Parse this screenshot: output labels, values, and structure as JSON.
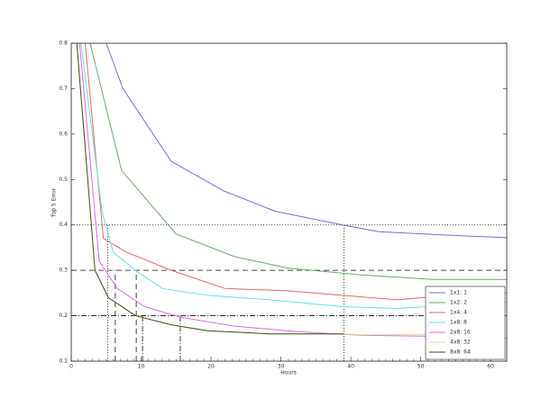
{
  "chart_data": {
    "type": "line",
    "xlabel": "Hours",
    "ylabel": "Top 5 Error",
    "xlim": [
      0,
      62.3
    ],
    "ylim": [
      0.1,
      0.8
    ],
    "xticks": [
      0,
      10,
      20,
      30,
      40,
      50,
      60
    ],
    "yticks": [
      0.1,
      0.2,
      0.3,
      0.4,
      0.5,
      0.6,
      0.7,
      0.8
    ],
    "legend": "lower right",
    "series": [
      {
        "name": "1x1: 1",
        "color": "#7070e0",
        "x": [
          5,
          7.4,
          14.3,
          21.8,
          29.2,
          38.8,
          44,
          53,
          62.3
        ],
        "values": [
          0.8,
          0.7,
          0.54,
          0.475,
          0.43,
          0.4,
          0.385,
          0.378,
          0.372
        ]
      },
      {
        "name": "1x2: 2",
        "color": "#6aaa6a",
        "x": [
          2.7,
          7.2,
          15,
          23.4,
          31,
          41.4,
          51.7,
          62.3
        ],
        "values": [
          0.8,
          0.52,
          0.38,
          0.33,
          0.305,
          0.29,
          0.28,
          0.28
        ]
      },
      {
        "name": "1x4: 4",
        "color": "#e06a6a",
        "x": [
          2,
          4.6,
          7.9,
          14.3,
          22,
          31,
          38.8,
          46.6,
          54,
          62.3
        ],
        "values": [
          0.8,
          0.37,
          0.34,
          0.3,
          0.26,
          0.255,
          0.245,
          0.235,
          0.245,
          0.25
        ]
      },
      {
        "name": "1x8: 8",
        "color": "#6adede",
        "x": [
          1.4,
          4.4,
          6,
          9.2,
          13,
          19.5,
          28.5,
          38.8,
          46.6,
          56.9,
          62.3
        ],
        "values": [
          0.8,
          0.43,
          0.34,
          0.3,
          0.26,
          0.245,
          0.235,
          0.22,
          0.216,
          0.225,
          0.23
        ]
      },
      {
        "name": "2x8: 16",
        "color": "#de6ade",
        "x": [
          1.2,
          4,
          6.6,
          10.5,
          15.6,
          23.4,
          32.4,
          41.4,
          50.5,
          62.3
        ],
        "values": [
          0.8,
          0.32,
          0.26,
          0.22,
          0.197,
          0.177,
          0.165,
          0.157,
          0.155,
          0.151
        ]
      },
      {
        "name": "4x8: 32",
        "color": "#e0e090",
        "x": [
          0.8,
          3.4,
          5.3,
          9.2,
          14.3,
          19.5,
          28.5,
          38.8,
          41.4,
          62.3
        ],
        "values": [
          0.8,
          0.3,
          0.24,
          0.2,
          0.18,
          0.167,
          0.16,
          0.16,
          0.158,
          0.16
        ]
      },
      {
        "name": "8x8: 64",
        "color": "#4a4a22",
        "x": [
          0.8,
          3.4,
          5.3,
          9.2,
          14.3,
          19.5,
          28.5,
          39
        ],
        "values": [
          0.8,
          0.3,
          0.24,
          0.2,
          0.18,
          0.167,
          0.16,
          0.16
        ]
      }
    ],
    "hlines": [
      {
        "y": 0.4,
        "style": "dotted"
      },
      {
        "y": 0.3,
        "style": "dashed"
      },
      {
        "y": 0.2,
        "style": "dashdot"
      }
    ],
    "vlines": [
      {
        "x": 5.2,
        "ymax": 0.4,
        "style": "dotted"
      },
      {
        "x": 39,
        "ymax": 0.4,
        "style": "dotted"
      },
      {
        "x": 6.3,
        "ymax": 0.3,
        "style": "dashed"
      },
      {
        "x": 9.3,
        "ymax": 0.3,
        "style": "dashed"
      },
      {
        "x": 10.2,
        "ymax": 0.2,
        "style": "dashdot"
      },
      {
        "x": 15.6,
        "ymax": 0.2,
        "style": "dashdot"
      }
    ]
  }
}
